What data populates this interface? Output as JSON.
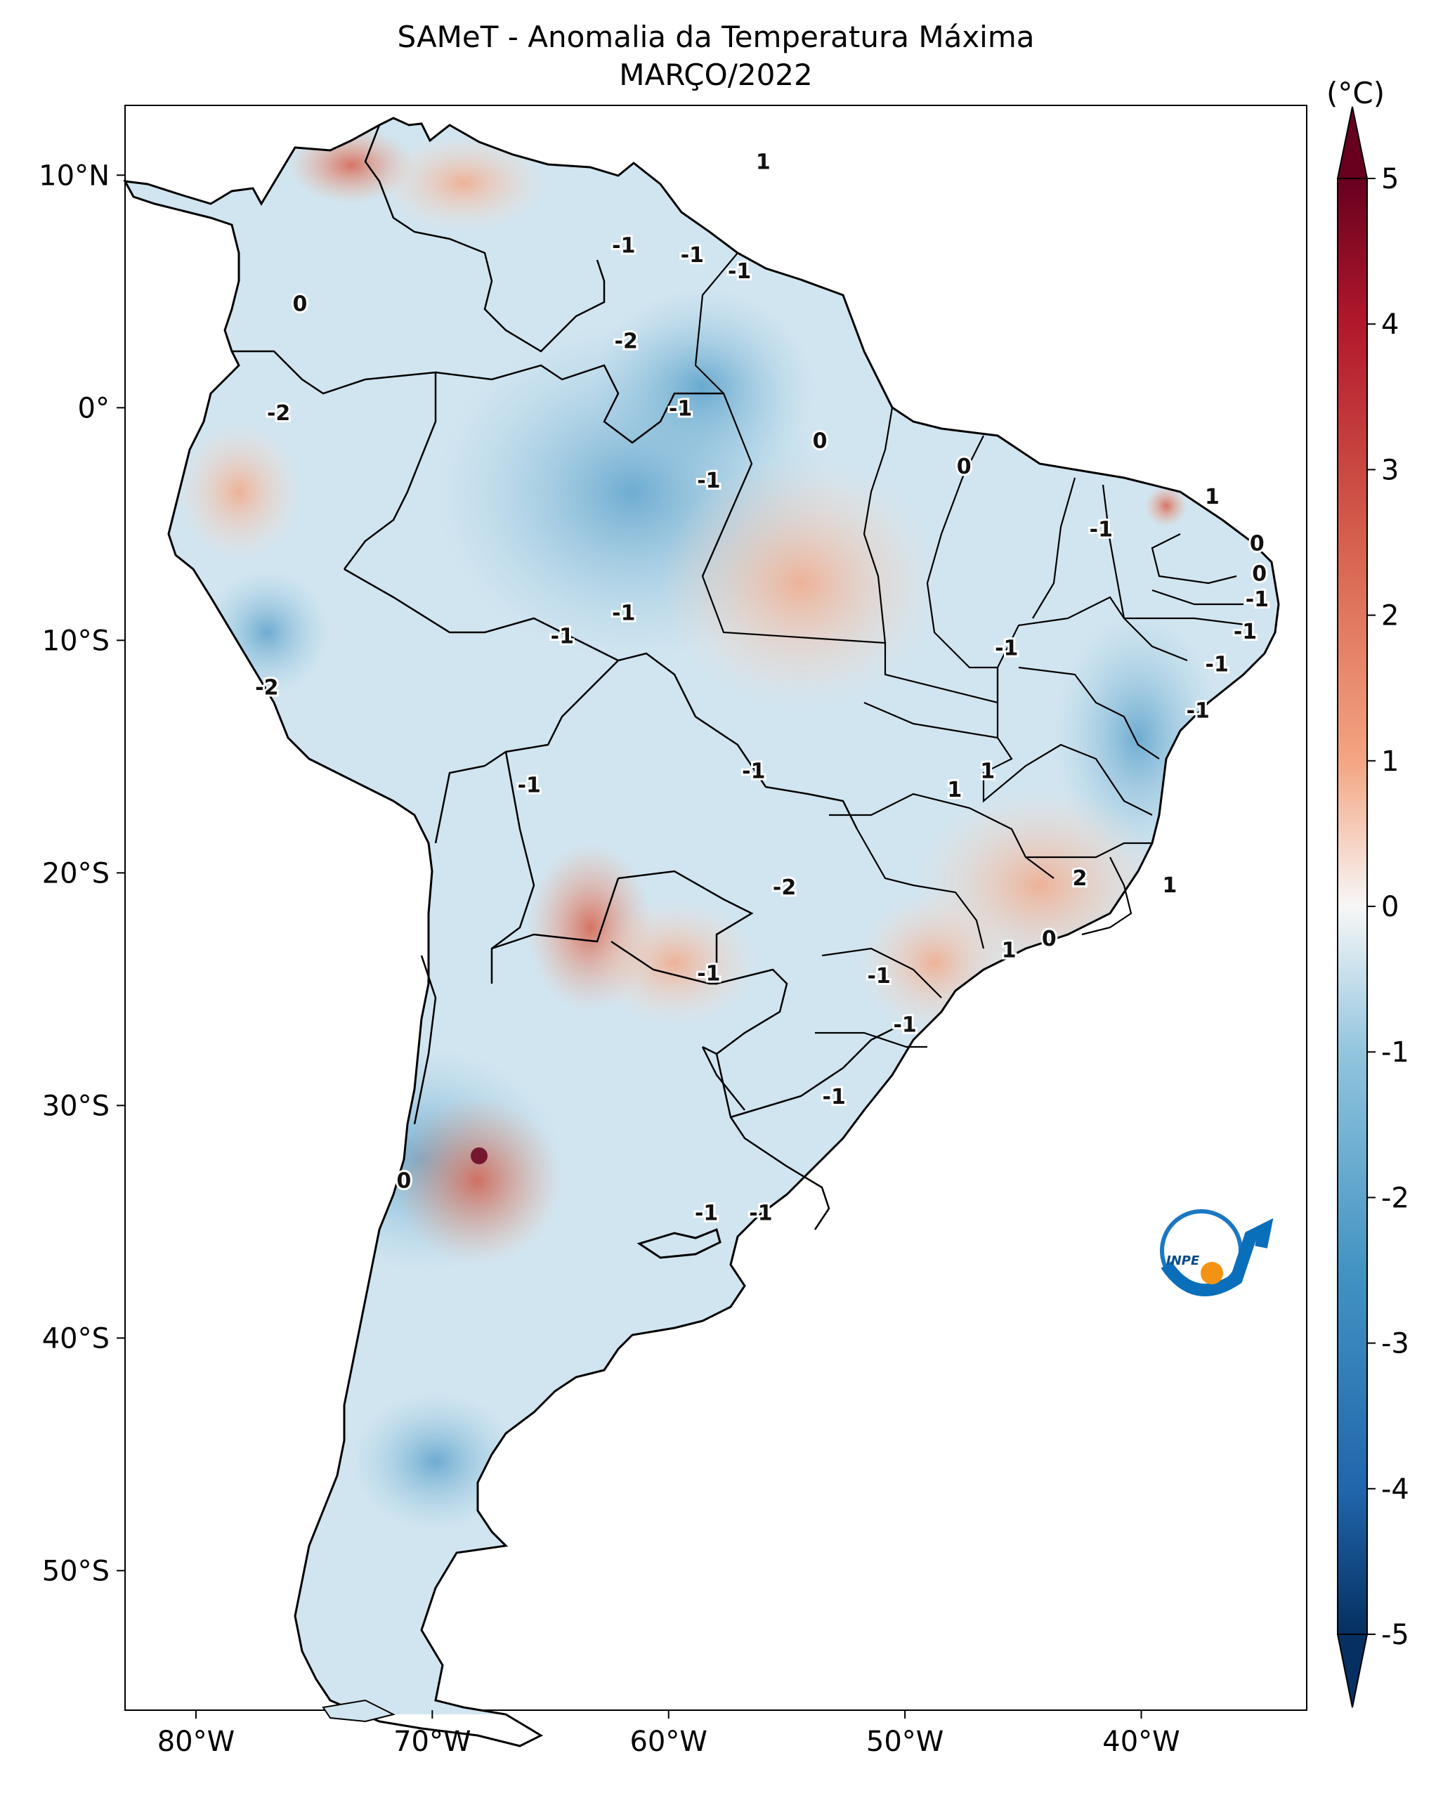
{
  "title": "SAMeT - Anomalia da Temperatura Máxima",
  "subtitle": "MARÇO/2022",
  "colorbar": {
    "unit": "(°C)",
    "range": [
      -5,
      5
    ],
    "ticks": [
      "5",
      "4",
      "3",
      "2",
      "1",
      "0",
      "-1",
      "-2",
      "-3",
      "-4",
      "-5"
    ],
    "colormap": "RdBu_r",
    "extend": "both"
  },
  "axes": {
    "lon_range": [
      -83,
      -33
    ],
    "lat_range": [
      -56,
      13
    ],
    "x_ticks": [
      {
        "lon": -80,
        "label": "80°W"
      },
      {
        "lon": -70,
        "label": "70°W"
      },
      {
        "lon": -60,
        "label": "60°W"
      },
      {
        "lon": -50,
        "label": "50°W"
      },
      {
        "lon": -40,
        "label": "40°W"
      }
    ],
    "y_ticks": [
      {
        "lat": 10,
        "label": "10°N"
      },
      {
        "lat": 0,
        "label": "0°"
      },
      {
        "lat": -10,
        "label": "10°S"
      },
      {
        "lat": -20,
        "label": "20°S"
      },
      {
        "lat": -30,
        "label": "30°S"
      },
      {
        "lat": -40,
        "label": "40°S"
      },
      {
        "lat": -50,
        "label": "50°S"
      }
    ]
  },
  "contour_labels": [
    {
      "lon": -56.0,
      "lat": 10.6,
      "text": "1"
    },
    {
      "lon": -75.6,
      "lat": 4.5,
      "text": "0"
    },
    {
      "lon": -61.9,
      "lat": 7.0,
      "text": "-1"
    },
    {
      "lon": -59.0,
      "lat": 6.6,
      "text": "-1"
    },
    {
      "lon": -57.0,
      "lat": 5.9,
      "text": "-1"
    },
    {
      "lon": -61.8,
      "lat": 2.9,
      "text": "-2"
    },
    {
      "lon": -76.5,
      "lat": -0.2,
      "text": "-2"
    },
    {
      "lon": -59.5,
      "lat": 0.0,
      "text": "-1"
    },
    {
      "lon": -53.6,
      "lat": -1.4,
      "text": "0"
    },
    {
      "lon": -58.3,
      "lat": -3.1,
      "text": "-1"
    },
    {
      "lon": -47.5,
      "lat": -2.5,
      "text": "0"
    },
    {
      "lon": -37.0,
      "lat": -3.8,
      "text": "1"
    },
    {
      "lon": -41.7,
      "lat": -5.2,
      "text": "-1"
    },
    {
      "lon": -35.1,
      "lat": -5.8,
      "text": "0"
    },
    {
      "lon": -35.0,
      "lat": -7.1,
      "text": "0"
    },
    {
      "lon": -35.1,
      "lat": -8.2,
      "text": "-1"
    },
    {
      "lon": -35.6,
      "lat": -9.6,
      "text": "-1"
    },
    {
      "lon": -36.8,
      "lat": -11.0,
      "text": "-1"
    },
    {
      "lon": -45.7,
      "lat": -10.3,
      "text": "-1"
    },
    {
      "lon": -64.5,
      "lat": -9.8,
      "text": "-1"
    },
    {
      "lon": -61.9,
      "lat": -8.8,
      "text": "-1"
    },
    {
      "lon": -77.0,
      "lat": -12.0,
      "text": "-2"
    },
    {
      "lon": -37.6,
      "lat": -13.0,
      "text": "-1"
    },
    {
      "lon": -56.4,
      "lat": -15.6,
      "text": "-1"
    },
    {
      "lon": -46.5,
      "lat": -15.6,
      "text": "1"
    },
    {
      "lon": -47.9,
      "lat": -16.4,
      "text": "1"
    },
    {
      "lon": -65.9,
      "lat": -16.2,
      "text": "-1"
    },
    {
      "lon": -42.6,
      "lat": -20.2,
      "text": "2"
    },
    {
      "lon": -55.1,
      "lat": -20.6,
      "text": "-2"
    },
    {
      "lon": -38.8,
      "lat": -20.5,
      "text": "1"
    },
    {
      "lon": -45.6,
      "lat": -23.3,
      "text": "1"
    },
    {
      "lon": -43.9,
      "lat": -22.8,
      "text": "0"
    },
    {
      "lon": -58.3,
      "lat": -24.3,
      "text": "-1"
    },
    {
      "lon": -51.1,
      "lat": -24.4,
      "text": "-1"
    },
    {
      "lon": -50.0,
      "lat": -26.5,
      "text": "-1"
    },
    {
      "lon": -53.0,
      "lat": -29.6,
      "text": "-1"
    },
    {
      "lon": -71.2,
      "lat": -33.2,
      "text": "0"
    },
    {
      "lon": -58.4,
      "lat": -34.6,
      "text": "-1"
    },
    {
      "lon": -56.1,
      "lat": -34.6,
      "text": "-1"
    }
  ]
}
